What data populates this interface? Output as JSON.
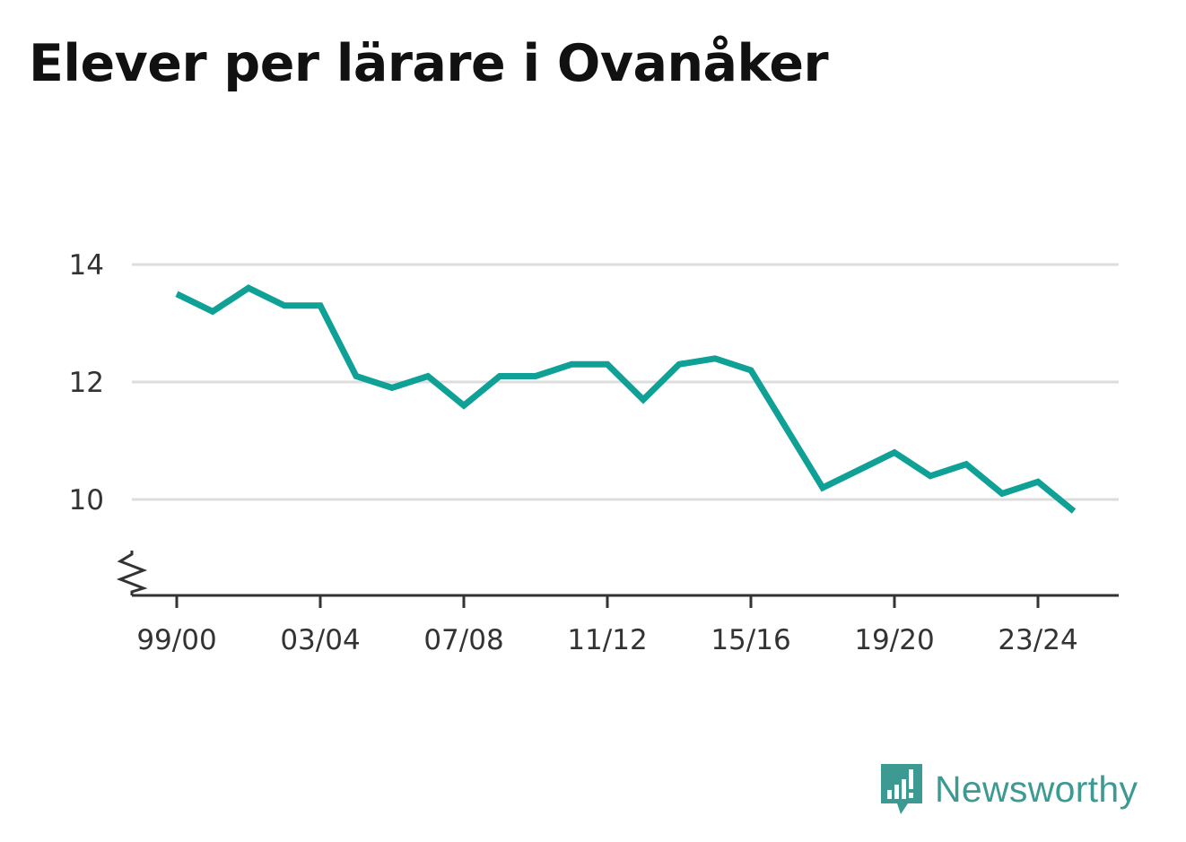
{
  "chart_data": {
    "type": "line",
    "title": "Elever per lärare i Ovanåker",
    "xlabel": "",
    "ylabel": "",
    "categories": [
      "99/00",
      "00/01",
      "01/02",
      "02/03",
      "03/04",
      "04/05",
      "05/06",
      "06/07",
      "07/08",
      "08/09",
      "09/10",
      "10/11",
      "11/12",
      "12/13",
      "13/14",
      "14/15",
      "15/16",
      "16/17",
      "17/18",
      "18/19",
      "19/20",
      "20/21",
      "21/22",
      "22/23",
      "23/24",
      "24/25"
    ],
    "x_tick_labels": [
      "99/00",
      "03/04",
      "07/08",
      "11/12",
      "15/16",
      "19/20",
      "23/24"
    ],
    "y_ticks": [
      "10",
      "12",
      "14"
    ],
    "ylim": [
      8.4,
      14.6
    ],
    "y_axis_break": true,
    "grid": true,
    "series": [
      {
        "values": [
          13.5,
          13.2,
          13.6,
          13.3,
          13.3,
          12.1,
          11.9,
          12.1,
          11.6,
          12.1,
          12.1,
          12.3,
          12.3,
          11.7,
          12.3,
          12.4,
          12.2,
          11.2,
          10.2,
          10.5,
          10.8,
          10.4,
          10.6,
          10.1,
          10.3,
          9.8
        ]
      }
    ],
    "colors": {
      "line": "#0fa096",
      "grid": "#dddddd",
      "axis": "#333333"
    }
  },
  "brand": {
    "name": "Newsworthy",
    "icon": "newsworthy-logo-icon",
    "color": "#3d9a93"
  }
}
